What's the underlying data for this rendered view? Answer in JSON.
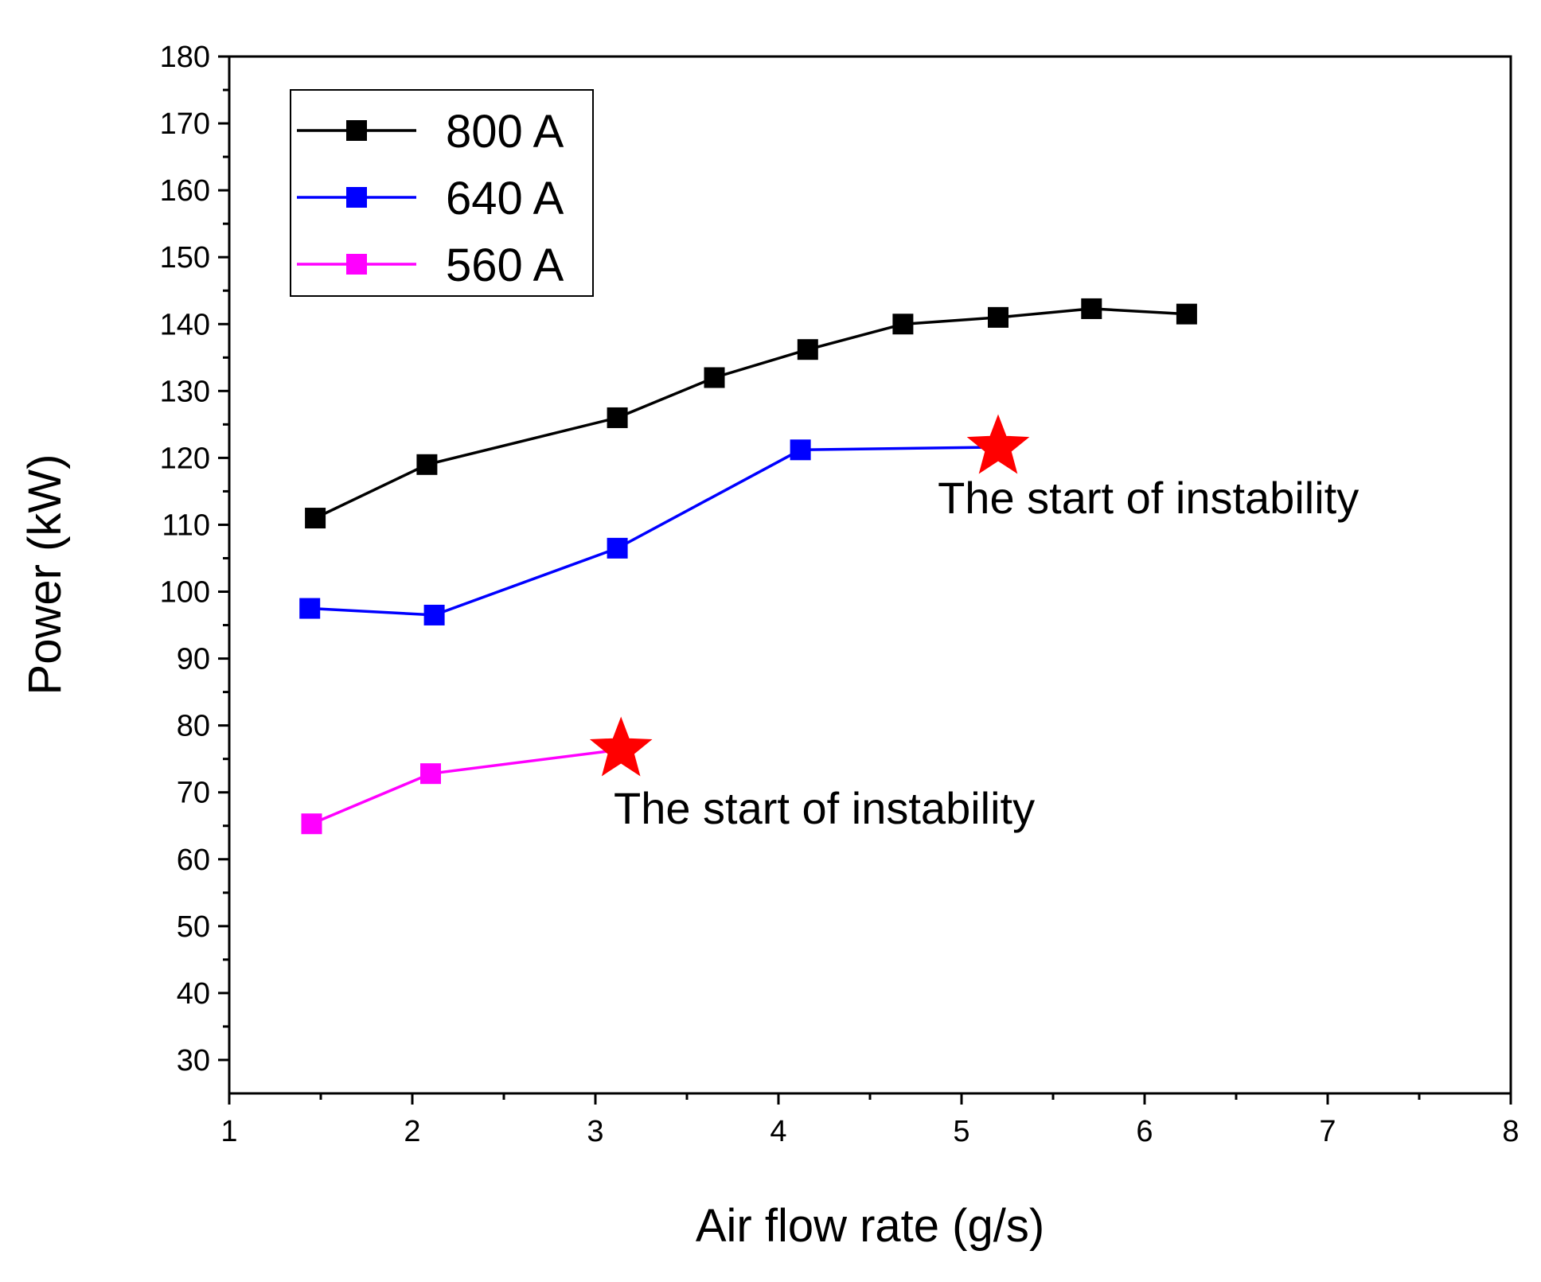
{
  "chart_data": {
    "type": "line",
    "title": "",
    "xlabel": "Air flow rate (g/s)",
    "ylabel": "Power (kW)",
    "xlim": [
      1,
      8
    ],
    "ylim": [
      25,
      180
    ],
    "xticks": [
      1,
      2,
      3,
      4,
      5,
      6,
      7,
      8
    ],
    "yticks": [
      30,
      40,
      50,
      60,
      70,
      80,
      90,
      100,
      110,
      120,
      130,
      140,
      150,
      160,
      170,
      180
    ],
    "grid": false,
    "legend_position": "top-left",
    "series": [
      {
        "name": "800 A",
        "color": "#000000",
        "marker": "square",
        "x": [
          1.47,
          2.08,
          3.12,
          3.65,
          4.16,
          4.68,
          5.2,
          5.71,
          6.23
        ],
        "y": [
          111,
          119,
          126,
          132,
          136.2,
          140,
          141,
          142.3,
          141.5
        ]
      },
      {
        "name": "640 A",
        "color": "#0000ff",
        "marker": "square",
        "x": [
          1.44,
          2.12,
          3.12,
          4.12,
          5.2
        ],
        "y": [
          97.5,
          96.5,
          106.5,
          121.2,
          121.6
        ],
        "end_marker": "star"
      },
      {
        "name": "560 A",
        "color": "#ff00ff",
        "marker": "square",
        "x": [
          1.45,
          2.1,
          3.14
        ],
        "y": [
          65.3,
          72.8,
          76.4
        ],
        "end_marker": "star"
      }
    ],
    "star_color": "#ff0000",
    "annotations": [
      {
        "text": "The start of instability",
        "x": 4.87,
        "y": 111.7
      },
      {
        "text": "The start of instability",
        "x": 3.1,
        "y": 65.3
      }
    ]
  }
}
